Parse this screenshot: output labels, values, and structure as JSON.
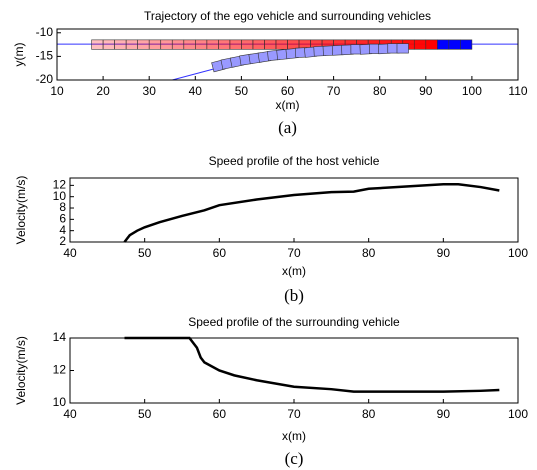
{
  "chart_data": [
    {
      "type": "line",
      "title": "Trajectory of the ego vehicle and surrounding vehicles",
      "xlabel": "x(m)",
      "ylabel": "y(m)",
      "caption": "(a)",
      "xlim": [
        10,
        110
      ],
      "ylim": [
        -20,
        -9.2
      ],
      "xticks": [
        10,
        20,
        30,
        40,
        50,
        60,
        70,
        80,
        90,
        100,
        110
      ],
      "yticks": [
        -10,
        -15,
        -20
      ],
      "grid": false,
      "series": [
        {
          "style": "line",
          "color": "#3333ff",
          "x": [
            10,
            110
          ],
          "values": [
            -12.4,
            -12.4
          ]
        },
        {
          "style": "line",
          "color": "#3333ff",
          "x": [
            35,
            40,
            45,
            55,
            65,
            75,
            85
          ],
          "values": [
            -20,
            -18.7,
            -17.4,
            -15.5,
            -14.3,
            -13.6,
            -13.2
          ]
        },
        {
          "style": "box",
          "color": "#ff0000",
          "fade": true,
          "x": [
            18.75,
            21.25,
            23.75,
            26.25,
            28.75,
            31.25,
            33.75,
            36.25,
            38.75,
            41.25,
            43.75,
            46.25,
            48.75,
            51.25,
            53.75,
            56.25,
            58.75,
            61.25,
            63.75,
            66.25,
            68.75,
            71.25,
            73.75,
            76.25,
            78.75,
            81.25,
            83.75,
            86.25,
            88.75,
            91.25
          ],
          "values": [
            -12.5,
            -12.5,
            -12.5,
            -12.5,
            -12.5,
            -12.5,
            -12.5,
            -12.5,
            -12.5,
            -12.5,
            -12.5,
            -12.5,
            -12.5,
            -12.5,
            -12.5,
            -12.5,
            -12.5,
            -12.5,
            -12.5,
            -12.5,
            -12.5,
            -12.5,
            -12.5,
            -12.5,
            -12.5,
            -12.5,
            -12.5,
            -12.5,
            -12.5,
            -12.5
          ]
        },
        {
          "style": "box",
          "color": "#0000ff",
          "fade": false,
          "x": [
            93.75,
            96.25,
            98.75
          ],
          "values": [
            -12.5,
            -12.5,
            -12.5
          ]
        },
        {
          "style": "box",
          "color": "#9999ff",
          "fade": false,
          "x": [
            45,
            47,
            49,
            51,
            53,
            55,
            57,
            59,
            61,
            63,
            65,
            67,
            69,
            71,
            73,
            75,
            77,
            79,
            81,
            83,
            85
          ],
          "values": [
            -17,
            -16.5,
            -16.1,
            -15.7,
            -15.4,
            -15.1,
            -14.8,
            -14.6,
            -14.4,
            -14.2,
            -14.1,
            -13.9,
            -13.8,
            -13.7,
            -13.6,
            -13.5,
            -13.5,
            -13.4,
            -13.4,
            -13.3,
            -13.3
          ]
        }
      ]
    },
    {
      "type": "line",
      "title": "Speed profile of the host vehicle",
      "xlabel": "x(m)",
      "ylabel": "Velocity(m/s)",
      "caption": "(b)",
      "xlim": [
        40,
        100
      ],
      "ylim": [
        2,
        13.3
      ],
      "xticks": [
        40,
        50,
        60,
        70,
        80,
        90,
        100
      ],
      "yticks": [
        2,
        4,
        6,
        8,
        10,
        12
      ],
      "grid": false,
      "series": [
        {
          "style": "line",
          "color": "#000000",
          "x": [
            47.3,
            48,
            49,
            50,
            52,
            55,
            58,
            60,
            65,
            70,
            75,
            78,
            80,
            85,
            90,
            92,
            95,
            97.5
          ],
          "values": [
            2,
            3.2,
            4,
            4.6,
            5.5,
            6.6,
            7.6,
            8.5,
            9.5,
            10.3,
            10.8,
            10.9,
            11.4,
            11.8,
            12.2,
            12.2,
            11.7,
            11.1
          ]
        }
      ]
    },
    {
      "type": "line",
      "title": "Speed profile of the surrounding vehicle",
      "xlabel": "x(m)",
      "ylabel": "Velocity(m/s)",
      "caption": "(c)",
      "xlim": [
        40,
        100
      ],
      "ylim": [
        10,
        14
      ],
      "xticks": [
        40,
        50,
        60,
        70,
        80,
        90,
        100
      ],
      "yticks": [
        10,
        12,
        14
      ],
      "grid": false,
      "series": [
        {
          "style": "line",
          "color": "#000000",
          "x": [
            47.3,
            52,
            56,
            57,
            57.5,
            58,
            60,
            62,
            65,
            70,
            75,
            78,
            85,
            90,
            95,
            97.5
          ],
          "values": [
            14,
            14,
            14,
            13.4,
            12.8,
            12.5,
            12,
            11.7,
            11.4,
            11,
            10.85,
            10.7,
            10.7,
            10.7,
            10.75,
            10.8
          ]
        }
      ]
    }
  ]
}
